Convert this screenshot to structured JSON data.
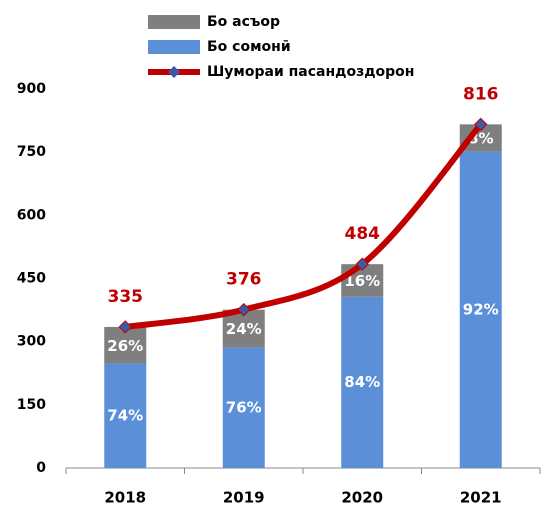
{
  "chart_data": {
    "type": "bar",
    "categories": [
      "2018",
      "2019",
      "2020",
      "2021"
    ],
    "series": [
      {
        "name": "Бо асъор",
        "color": "#7f7f7f",
        "values": [
          26,
          24,
          16,
          8
        ],
        "value_labels": [
          "26%",
          "24%",
          "16%",
          "8%"
        ]
      },
      {
        "name": "Бо сомонӣ",
        "color": "#5b8fd8",
        "values": [
          74,
          76,
          84,
          92
        ],
        "value_labels": [
          "74%",
          "76%",
          "84%",
          "92%"
        ]
      },
      {
        "name": "Шумораи пасандоздорон",
        "type": "line",
        "color": "#c00000",
        "marker_color": "#3a5aa8",
        "values": [
          335,
          376,
          484,
          816
        ]
      }
    ],
    "ylim": [
      0,
      900
    ],
    "yticks": [
      0,
      150,
      300,
      450,
      600,
      750,
      900
    ],
    "grid": false,
    "legend": "top"
  }
}
